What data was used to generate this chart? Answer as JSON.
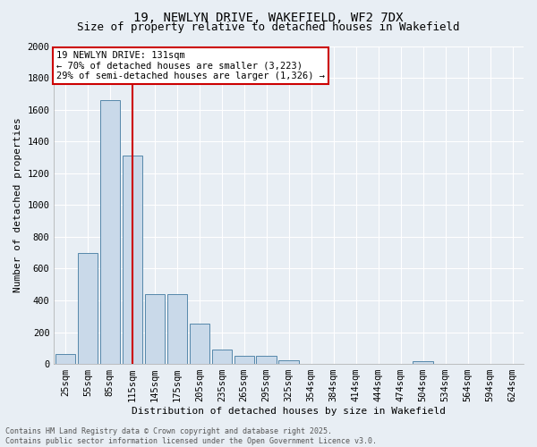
{
  "title_line1": "19, NEWLYN DRIVE, WAKEFIELD, WF2 7DX",
  "title_line2": "Size of property relative to detached houses in Wakefield",
  "xlabel": "Distribution of detached houses by size in Wakefield",
  "ylabel": "Number of detached properties",
  "bar_labels": [
    "25sqm",
    "55sqm",
    "85sqm",
    "115sqm",
    "145sqm",
    "175sqm",
    "205sqm",
    "235sqm",
    "265sqm",
    "295sqm",
    "325sqm",
    "354sqm",
    "384sqm",
    "414sqm",
    "444sqm",
    "474sqm",
    "504sqm",
    "534sqm",
    "564sqm",
    "594sqm",
    "624sqm"
  ],
  "bar_values": [
    60,
    700,
    1660,
    1310,
    440,
    440,
    255,
    90,
    50,
    50,
    25,
    0,
    0,
    0,
    0,
    0,
    20,
    0,
    0,
    0,
    0
  ],
  "bar_color": "#c9d9e9",
  "bar_edge_color": "#5588aa",
  "vline_color": "#cc0000",
  "vline_pos": 3.0,
  "ylim": [
    0,
    2000
  ],
  "yticks": [
    0,
    200,
    400,
    600,
    800,
    1000,
    1200,
    1400,
    1600,
    1800,
    2000
  ],
  "annotation_text": "19 NEWLYN DRIVE: 131sqm\n← 70% of detached houses are smaller (3,223)\n29% of semi-detached houses are larger (1,326) →",
  "annotation_box_color": "#ffffff",
  "annotation_box_edge": "#cc0000",
  "footnote": "Contains HM Land Registry data © Crown copyright and database right 2025.\nContains public sector information licensed under the Open Government Licence v3.0.",
  "background_color": "#e8eef4",
  "plot_bg_color": "#e8eef4",
  "grid_color": "#ffffff",
  "title_fontsize": 10,
  "subtitle_fontsize": 9,
  "ylabel_fontsize": 8,
  "xlabel_fontsize": 8,
  "tick_fontsize": 7.5,
  "ann_fontsize": 7.5
}
